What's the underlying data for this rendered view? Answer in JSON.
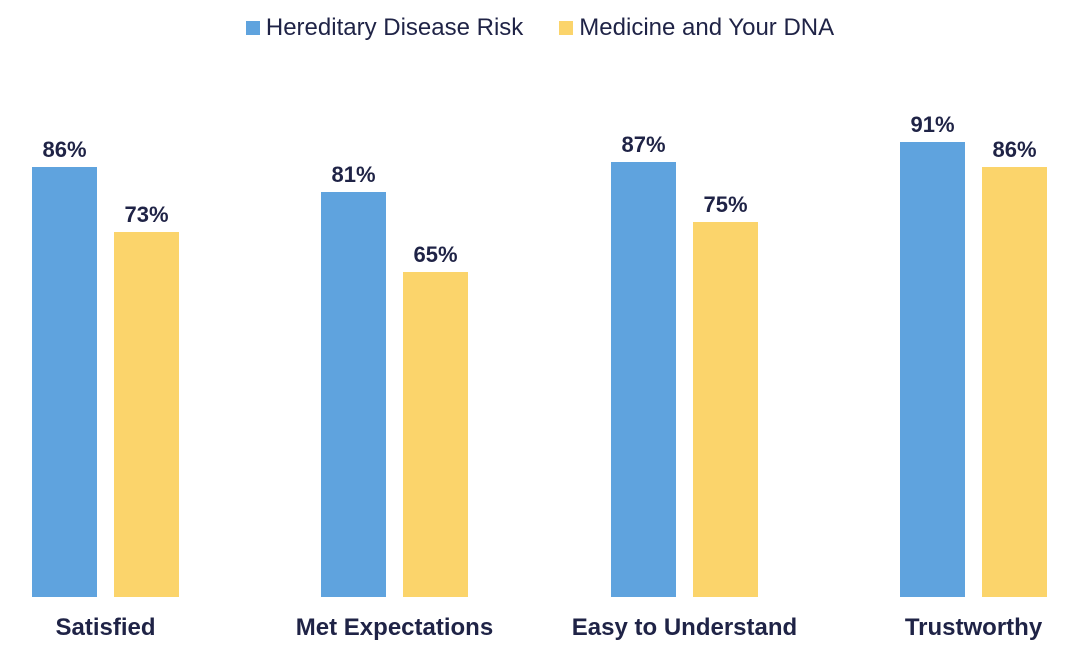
{
  "chart_data": {
    "type": "bar",
    "categories": [
      "Satisfied",
      "Met Expectations",
      "Easy to Understand",
      "Trustworthy"
    ],
    "series": [
      {
        "name": "Hereditary Disease Risk",
        "values": [
          86,
          81,
          87,
          91
        ],
        "color": "#5fa3de"
      },
      {
        "name": "Medicine and Your DNA",
        "values": [
          73,
          65,
          75,
          86
        ],
        "color": "#fbd46b"
      }
    ],
    "value_suffix": "%",
    "ylim": [
      0,
      100
    ],
    "legend_position": "top-center",
    "grid": false
  }
}
